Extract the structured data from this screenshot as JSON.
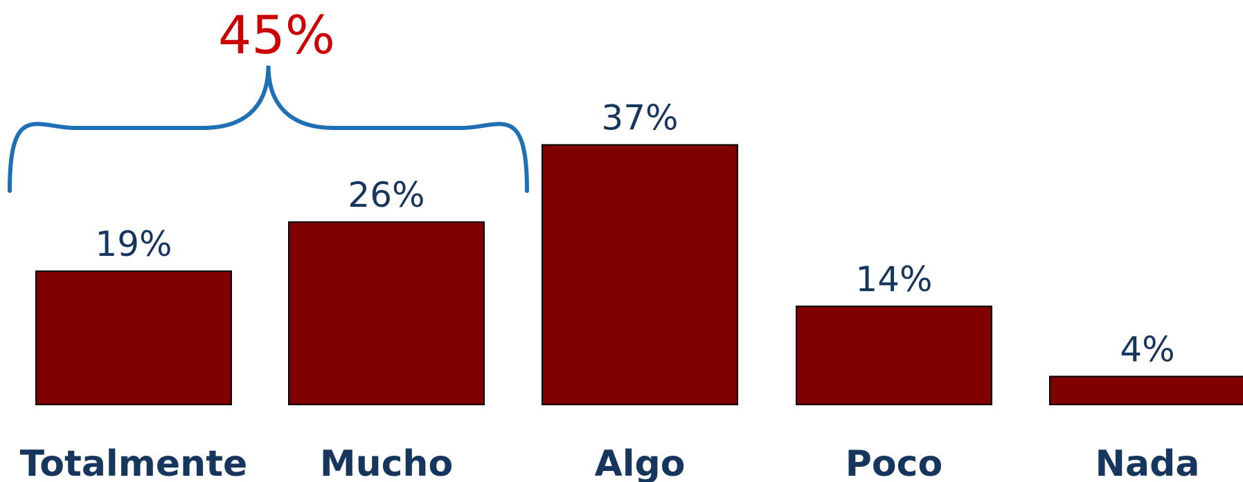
{
  "chart_data": {
    "type": "bar",
    "categories": [
      "Totalmente",
      "Mucho",
      "Algo",
      "Poco",
      "Nada"
    ],
    "values": [
      19,
      26,
      37,
      14,
      4
    ],
    "value_labels": [
      "19%",
      "26%",
      "37%",
      "14%",
      "4%"
    ],
    "value_unit": "%",
    "ylim": [
      0,
      40
    ],
    "grid": false,
    "bracket": {
      "label": "45%",
      "spans": [
        "Totalmente",
        "Mucho"
      ],
      "value": 45
    }
  },
  "colors": {
    "bar": "#800000",
    "bar_outline": "#000000",
    "value_text": "#17365d",
    "category_text": "#17365d",
    "bracket_label": "#cc0000",
    "bracket_line": "#1f6fb5"
  }
}
